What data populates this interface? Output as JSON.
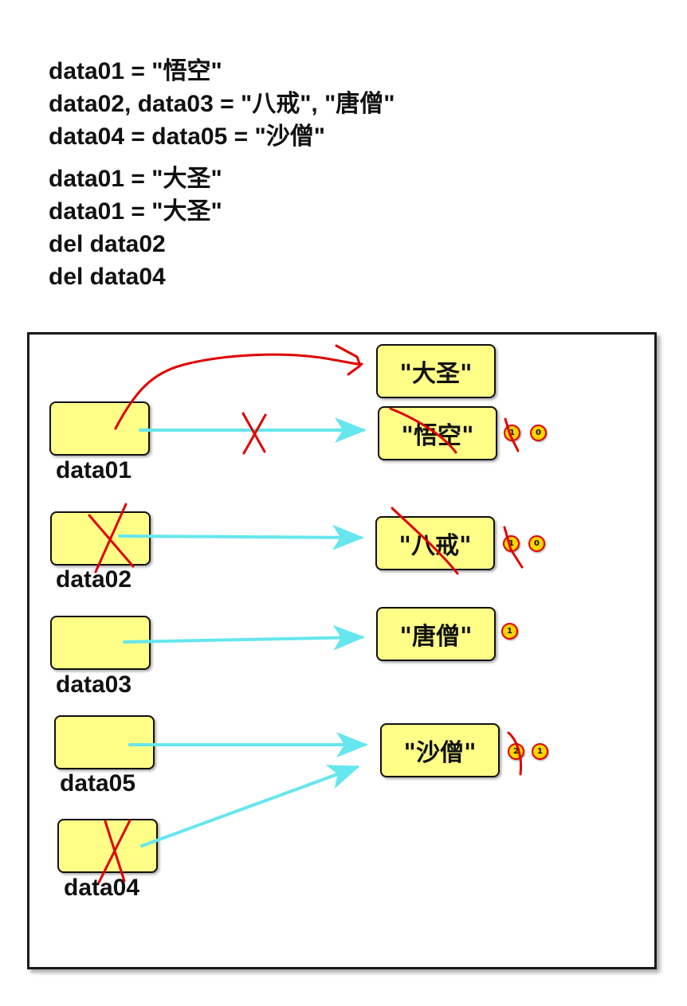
{
  "code": {
    "lines": [
      "data01 = \"悟空\"",
      "data02, data03 = \"八戒\", \"唐僧\"",
      "data04 = data05 = \"沙僧\"",
      "data01 = \"大圣\"",
      "data01 = \"大圣\"",
      "del data02",
      "del data04"
    ]
  },
  "diagram": {
    "variables": {
      "data01": "data01",
      "data02": "data02",
      "data03": "data03",
      "data05": "data05",
      "data04": "data04"
    },
    "values": {
      "dasheng": "\"大圣\"",
      "wukong": "\"悟空\"",
      "bajie": "\"八戒\"",
      "tangseng": "\"唐僧\"",
      "shaseng": "\"沙僧\""
    },
    "ref_counts": {
      "wukong_old": "1",
      "wukong_new": "0",
      "bajie_old": "1",
      "bajie_new": "0",
      "tangseng": "1",
      "shaseng_old": "2",
      "shaseng_new": "1"
    },
    "colors": {
      "box_fill": "#ffff88",
      "reference_arrow": "#66e6ee",
      "annotation_red": "#e00000",
      "badge_fill": "#ffd400"
    }
  }
}
